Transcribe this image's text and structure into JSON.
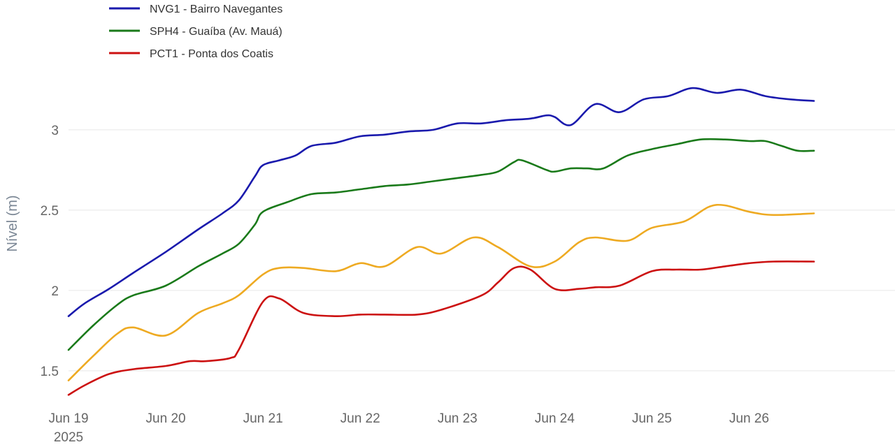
{
  "chart_data": {
    "type": "line",
    "title": "",
    "xlabel": "",
    "ylabel": "Nível (m)",
    "grid": true,
    "legend_position": "top-left",
    "ylim": [
      1.33,
      3.33
    ],
    "xlim": [
      "2025-06-19T00:00",
      "2025-06-27T12:00"
    ],
    "x_ticks": [
      {
        "date": "2025-06-19",
        "label": "Jun 19",
        "sublabel": "2025"
      },
      {
        "date": "2025-06-20",
        "label": "Jun 20"
      },
      {
        "date": "2025-06-21",
        "label": "Jun 21"
      },
      {
        "date": "2025-06-22",
        "label": "Jun 22"
      },
      {
        "date": "2025-06-23",
        "label": "Jun 23"
      },
      {
        "date": "2025-06-24",
        "label": "Jun 24"
      },
      {
        "date": "2025-06-25",
        "label": "Jun 25"
      },
      {
        "date": "2025-06-26",
        "label": "Jun 26"
      }
    ],
    "y_ticks": [
      {
        "value": 1.5,
        "label": "1.5"
      },
      {
        "value": 2,
        "label": "2"
      },
      {
        "value": 2.5,
        "label": "2.5"
      },
      {
        "value": 3,
        "label": "3"
      }
    ],
    "series": [
      {
        "name": "NVG1 - Bairro Navegantes",
        "color": "#1a1aad",
        "in_legend": true,
        "points": [
          [
            "2025-06-19T00:00",
            1.84
          ],
          [
            "2025-06-19T04:00",
            1.92
          ],
          [
            "2025-06-19T10:00",
            2.01
          ],
          [
            "2025-06-19T16:00",
            2.11
          ],
          [
            "2025-06-20T00:00",
            2.24
          ],
          [
            "2025-06-20T08:00",
            2.38
          ],
          [
            "2025-06-20T14:00",
            2.48
          ],
          [
            "2025-06-20T18:00",
            2.56
          ],
          [
            "2025-06-20T22:00",
            2.71
          ],
          [
            "2025-06-21T00:00",
            2.78
          ],
          [
            "2025-06-21T04:00",
            2.81
          ],
          [
            "2025-06-21T08:00",
            2.84
          ],
          [
            "2025-06-21T12:00",
            2.9
          ],
          [
            "2025-06-21T18:00",
            2.92
          ],
          [
            "2025-06-22T00:00",
            2.96
          ],
          [
            "2025-06-22T06:00",
            2.97
          ],
          [
            "2025-06-22T12:00",
            2.99
          ],
          [
            "2025-06-22T18:00",
            3.0
          ],
          [
            "2025-06-23T00:00",
            3.04
          ],
          [
            "2025-06-23T06:00",
            3.04
          ],
          [
            "2025-06-23T12:00",
            3.06
          ],
          [
            "2025-06-23T18:00",
            3.07
          ],
          [
            "2025-06-23T22:00",
            3.09
          ],
          [
            "2025-06-24T00:00",
            3.08
          ],
          [
            "2025-06-24T04:00",
            3.03
          ],
          [
            "2025-06-24T10:00",
            3.16
          ],
          [
            "2025-06-24T16:00",
            3.11
          ],
          [
            "2025-06-24T22:00",
            3.19
          ],
          [
            "2025-06-25T04:00",
            3.21
          ],
          [
            "2025-06-25T10:00",
            3.26
          ],
          [
            "2025-06-25T16:00",
            3.23
          ],
          [
            "2025-06-25T22:00",
            3.25
          ],
          [
            "2025-06-26T04:00",
            3.21
          ],
          [
            "2025-06-26T10:00",
            3.19
          ],
          [
            "2025-06-26T16:00",
            3.18
          ]
        ]
      },
      {
        "name": "SPH4 - Guaíba (Av. Mauá)",
        "color": "#1a7a1a",
        "in_legend": true,
        "points": [
          [
            "2025-06-19T00:00",
            1.63
          ],
          [
            "2025-06-19T06:00",
            1.78
          ],
          [
            "2025-06-19T12:00",
            1.91
          ],
          [
            "2025-06-19T16:00",
            1.97
          ],
          [
            "2025-06-20T00:00",
            2.03
          ],
          [
            "2025-06-20T08:00",
            2.15
          ],
          [
            "2025-06-20T14:00",
            2.23
          ],
          [
            "2025-06-20T18:00",
            2.29
          ],
          [
            "2025-06-20T22:00",
            2.41
          ],
          [
            "2025-06-21T00:00",
            2.49
          ],
          [
            "2025-06-21T06:00",
            2.55
          ],
          [
            "2025-06-21T12:00",
            2.6
          ],
          [
            "2025-06-21T18:00",
            2.61
          ],
          [
            "2025-06-22T00:00",
            2.63
          ],
          [
            "2025-06-22T06:00",
            2.65
          ],
          [
            "2025-06-22T12:00",
            2.66
          ],
          [
            "2025-06-22T18:00",
            2.68
          ],
          [
            "2025-06-23T00:00",
            2.7
          ],
          [
            "2025-06-23T06:00",
            2.72
          ],
          [
            "2025-06-23T10:00",
            2.74
          ],
          [
            "2025-06-23T14:00",
            2.8
          ],
          [
            "2025-06-23T16:00",
            2.81
          ],
          [
            "2025-06-23T22:00",
            2.75
          ],
          [
            "2025-06-24T00:00",
            2.74
          ],
          [
            "2025-06-24T04:00",
            2.76
          ],
          [
            "2025-06-24T08:00",
            2.76
          ],
          [
            "2025-06-24T12:00",
            2.76
          ],
          [
            "2025-06-24T18:00",
            2.84
          ],
          [
            "2025-06-25T00:00",
            2.88
          ],
          [
            "2025-06-25T06:00",
            2.91
          ],
          [
            "2025-06-25T12:00",
            2.94
          ],
          [
            "2025-06-25T18:00",
            2.94
          ],
          [
            "2025-06-26T00:00",
            2.93
          ],
          [
            "2025-06-26T04:00",
            2.93
          ],
          [
            "2025-06-26T08:00",
            2.9
          ],
          [
            "2025-06-26T12:00",
            2.87
          ],
          [
            "2025-06-26T16:00",
            2.87
          ]
        ]
      },
      {
        "name": "",
        "color": "#eeaa22",
        "in_legend": false,
        "points": [
          [
            "2025-06-19T00:00",
            1.44
          ],
          [
            "2025-06-19T06:00",
            1.59
          ],
          [
            "2025-06-19T12:00",
            1.73
          ],
          [
            "2025-06-19T16:00",
            1.77
          ],
          [
            "2025-06-20T00:00",
            1.72
          ],
          [
            "2025-06-20T08:00",
            1.86
          ],
          [
            "2025-06-20T14:00",
            1.92
          ],
          [
            "2025-06-20T18:00",
            1.97
          ],
          [
            "2025-06-21T00:00",
            2.1
          ],
          [
            "2025-06-21T04:00",
            2.14
          ],
          [
            "2025-06-21T10:00",
            2.14
          ],
          [
            "2025-06-21T18:00",
            2.12
          ],
          [
            "2025-06-22T00:00",
            2.17
          ],
          [
            "2025-06-22T06:00",
            2.15
          ],
          [
            "2025-06-22T14:00",
            2.27
          ],
          [
            "2025-06-22T20:00",
            2.23
          ],
          [
            "2025-06-23T04:00",
            2.33
          ],
          [
            "2025-06-23T10:00",
            2.27
          ],
          [
            "2025-06-23T18:00",
            2.15
          ],
          [
            "2025-06-24T00:00",
            2.18
          ],
          [
            "2025-06-24T06:00",
            2.3
          ],
          [
            "2025-06-24T10:00",
            2.33
          ],
          [
            "2025-06-24T18:00",
            2.31
          ],
          [
            "2025-06-25T00:00",
            2.39
          ],
          [
            "2025-06-25T08:00",
            2.43
          ],
          [
            "2025-06-25T14:00",
            2.52
          ],
          [
            "2025-06-25T18:00",
            2.53
          ],
          [
            "2025-06-26T00:00",
            2.49
          ],
          [
            "2025-06-26T06:00",
            2.47
          ],
          [
            "2025-06-26T16:00",
            2.48
          ]
        ]
      },
      {
        "name": "PCT1 - Ponta dos Coatis",
        "color": "#cc1111",
        "in_legend": true,
        "points": [
          [
            "2025-06-19T00:00",
            1.35
          ],
          [
            "2025-06-19T04:00",
            1.41
          ],
          [
            "2025-06-19T10:00",
            1.48
          ],
          [
            "2025-06-19T16:00",
            1.51
          ],
          [
            "2025-06-20T00:00",
            1.53
          ],
          [
            "2025-06-20T06:00",
            1.56
          ],
          [
            "2025-06-20T10:00",
            1.56
          ],
          [
            "2025-06-20T16:00",
            1.58
          ],
          [
            "2025-06-20T18:00",
            1.63
          ],
          [
            "2025-06-21T00:00",
            1.93
          ],
          [
            "2025-06-21T04:00",
            1.95
          ],
          [
            "2025-06-21T10:00",
            1.86
          ],
          [
            "2025-06-21T18:00",
            1.84
          ],
          [
            "2025-06-22T00:00",
            1.85
          ],
          [
            "2025-06-22T06:00",
            1.85
          ],
          [
            "2025-06-22T14:00",
            1.85
          ],
          [
            "2025-06-22T20:00",
            1.88
          ],
          [
            "2025-06-23T06:00",
            1.97
          ],
          [
            "2025-06-23T10:00",
            2.05
          ],
          [
            "2025-06-23T14:00",
            2.14
          ],
          [
            "2025-06-23T18:00",
            2.13
          ],
          [
            "2025-06-24T00:00",
            2.01
          ],
          [
            "2025-06-24T06:00",
            2.01
          ],
          [
            "2025-06-24T10:00",
            2.02
          ],
          [
            "2025-06-24T16:00",
            2.03
          ],
          [
            "2025-06-25T00:00",
            2.12
          ],
          [
            "2025-06-25T06:00",
            2.13
          ],
          [
            "2025-06-25T12:00",
            2.13
          ],
          [
            "2025-06-25T18:00",
            2.15
          ],
          [
            "2025-06-26T00:00",
            2.17
          ],
          [
            "2025-06-26T06:00",
            2.18
          ],
          [
            "2025-06-26T16:00",
            2.18
          ]
        ]
      }
    ]
  }
}
